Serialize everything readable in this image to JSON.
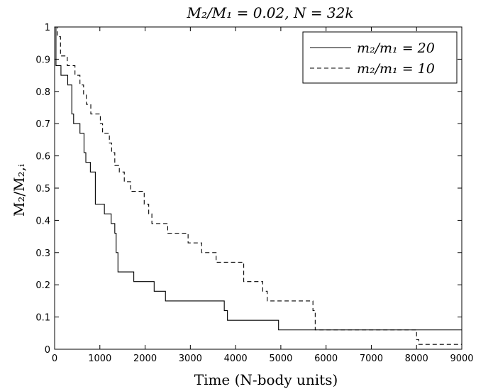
{
  "chart_data": {
    "type": "line",
    "title": "M₂/M₁ = 0.02, N = 32k",
    "xlabel": "Time (N-body units)",
    "ylabel": "M₂/M₂,ᵢ",
    "xlim": [
      0,
      9000
    ],
    "ylim": [
      0,
      1
    ],
    "xticks": [
      "0",
      "1000",
      "2000",
      "3000",
      "4000",
      "5000",
      "6000",
      "7000",
      "8000",
      "9000"
    ],
    "yticks": [
      "0",
      "0.1",
      "0.2",
      "0.3",
      "0.4",
      "0.5",
      "0.6",
      "0.7",
      "0.8",
      "0.9",
      "1"
    ],
    "grid": false,
    "legend_position": "top-right",
    "series": [
      {
        "name": "m₂/m₁ = 20",
        "style": "solid",
        "color": "#000000",
        "x": [
          0,
          30,
          140,
          290,
          380,
          420,
          560,
          650,
          690,
          790,
          900,
          1100,
          1250,
          1330,
          1360,
          1400,
          1750,
          2200,
          2450,
          3750,
          3820,
          4950,
          9000
        ],
        "y": [
          1.0,
          0.88,
          0.85,
          0.82,
          0.73,
          0.7,
          0.67,
          0.61,
          0.58,
          0.55,
          0.45,
          0.42,
          0.39,
          0.36,
          0.3,
          0.24,
          0.21,
          0.18,
          0.15,
          0.12,
          0.09,
          0.06,
          0.06
        ]
      },
      {
        "name": "m₂/m₁ = 10",
        "style": "dashed",
        "color": "#000000",
        "x": [
          0,
          60,
          130,
          280,
          450,
          560,
          640,
          700,
          800,
          1010,
          1060,
          1210,
          1260,
          1330,
          1430,
          1540,
          1680,
          1980,
          2080,
          2150,
          2500,
          2950,
          3250,
          3570,
          4180,
          4600,
          4700,
          5710,
          5760,
          8000,
          8050,
          9000
        ],
        "y": [
          1.0,
          0.97,
          0.91,
          0.88,
          0.85,
          0.82,
          0.79,
          0.76,
          0.73,
          0.7,
          0.67,
          0.64,
          0.61,
          0.57,
          0.55,
          0.52,
          0.49,
          0.45,
          0.42,
          0.39,
          0.36,
          0.33,
          0.3,
          0.27,
          0.21,
          0.18,
          0.15,
          0.12,
          0.06,
          0.03,
          0.015,
          0.015
        ]
      }
    ]
  }
}
